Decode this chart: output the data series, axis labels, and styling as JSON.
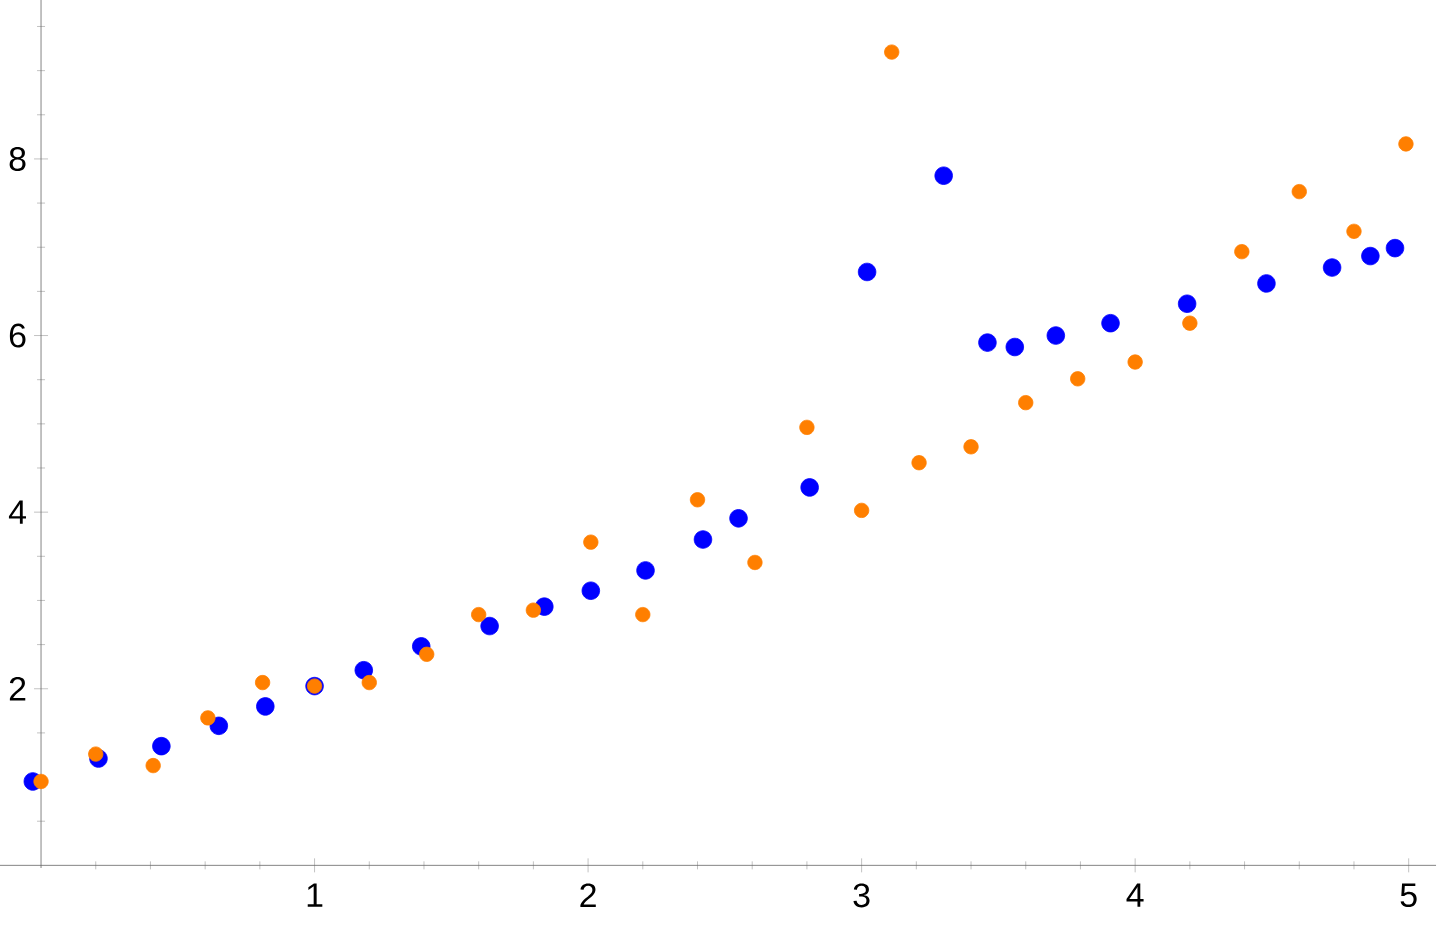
{
  "chart_data": {
    "type": "scatter",
    "marker": "circle",
    "grid": false,
    "xlim": [
      -0.15,
      5.1
    ],
    "ylim": [
      -0.03,
      9.8
    ],
    "xticks": [
      {
        "value": 0.2,
        "label": null
      },
      {
        "value": 0.4,
        "label": null
      },
      {
        "value": 0.6,
        "label": null
      },
      {
        "value": 0.8,
        "label": null
      },
      1,
      {
        "value": 1.2,
        "label": null
      },
      {
        "value": 1.4,
        "label": null
      },
      {
        "value": 1.6,
        "label": null
      },
      {
        "value": 1.8,
        "label": null
      },
      2,
      {
        "value": 2.2,
        "label": null
      },
      {
        "value": 2.4,
        "label": null
      },
      {
        "value": 2.6,
        "label": null
      },
      {
        "value": 2.8,
        "label": null
      },
      3,
      {
        "value": 3.2,
        "label": null
      },
      {
        "value": 3.4,
        "label": null
      },
      {
        "value": 3.6,
        "label": null
      },
      {
        "value": 3.8,
        "label": null
      },
      4,
      {
        "value": 4.2,
        "label": null
      },
      {
        "value": 4.4,
        "label": null
      },
      {
        "value": 4.6,
        "label": null
      },
      {
        "value": 4.8,
        "label": null
      },
      5
    ],
    "yticks": [
      {
        "value": 0.5,
        "label": null
      },
      {
        "value": 1,
        "label": null
      },
      {
        "value": 1.5,
        "label": null
      },
      2,
      {
        "value": 2.5,
        "label": null
      },
      {
        "value": 3,
        "label": null
      },
      {
        "value": 3.5,
        "label": null
      },
      4,
      {
        "value": 4.5,
        "label": null
      },
      {
        "value": 5,
        "label": null
      },
      {
        "value": 5.5,
        "label": null
      },
      6,
      {
        "value": 6.5,
        "label": null
      },
      {
        "value": 7,
        "label": null
      },
      {
        "value": 7.5,
        "label": null
      },
      8,
      {
        "value": 8.5,
        "label": null
      },
      {
        "value": 9,
        "label": null
      },
      {
        "value": 9.5,
        "label": null
      }
    ],
    "series": [
      {
        "color": "#0000ff",
        "x": [
          -0.03,
          0.21,
          0.44,
          0.65,
          0.82,
          1.0,
          1.18,
          1.39,
          1.64,
          1.84,
          2.01,
          2.21,
          2.42,
          2.55,
          2.81,
          3.02,
          3.3,
          3.46,
          3.56,
          3.71,
          3.91,
          4.19,
          4.48,
          4.72,
          4.86,
          4.95
        ],
        "values": [
          0.95,
          1.21,
          1.35,
          1.58,
          1.8,
          2.03,
          2.21,
          2.48,
          2.71,
          2.93,
          3.11,
          3.34,
          3.69,
          3.93,
          4.28,
          6.72,
          7.81,
          5.92,
          5.87,
          6.0,
          6.14,
          6.36,
          6.59,
          6.77,
          6.9,
          6.99
        ]
      },
      {
        "color": "#ff7f00",
        "x": [
          0.0,
          0.2,
          0.41,
          0.61,
          0.81,
          1.0,
          1.2,
          1.41,
          1.6,
          1.8,
          2.01,
          2.2,
          2.4,
          2.61,
          2.8,
          3.0,
          3.11,
          3.21,
          3.4,
          3.6,
          3.79,
          4.0,
          4.2,
          4.39,
          4.6,
          4.8,
          4.99
        ],
        "values": [
          0.95,
          1.26,
          1.13,
          1.67,
          2.07,
          2.03,
          2.07,
          2.39,
          2.84,
          2.89,
          3.66,
          2.84,
          4.14,
          3.43,
          4.96,
          4.02,
          9.21,
          4.56,
          4.74,
          5.24,
          5.51,
          5.7,
          6.14,
          6.95,
          7.63,
          7.18,
          8.17
        ]
      }
    ]
  }
}
